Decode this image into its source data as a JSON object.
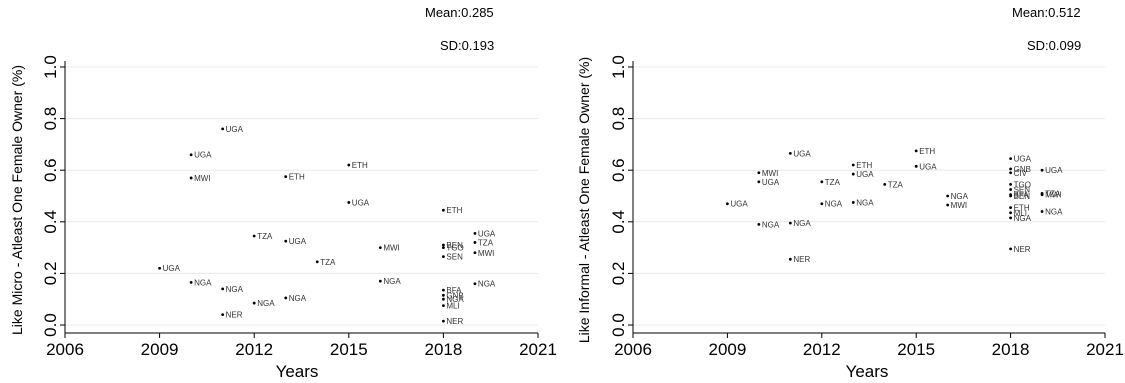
{
  "chart_data": [
    {
      "type": "scatter",
      "xlabel": "Years",
      "ylabel": "Like Micro - Atleast One Female Owner (%)",
      "xlim": [
        2006,
        2021
      ],
      "ylim": [
        0,
        1
      ],
      "xticks": [
        "2006",
        "2009",
        "2012",
        "2015",
        "2018",
        "2021"
      ],
      "yticks": [
        "0.0",
        "0.2",
        "0.4",
        "0.6",
        "0.8",
        "1.0"
      ],
      "grid": true,
      "mean_label": "Mean:0.285",
      "sd_label": "SD:0.193",
      "points": [
        {
          "x": 2009,
          "y": 0.22,
          "label": "UGA"
        },
        {
          "x": 2010,
          "y": 0.66,
          "label": "UGA"
        },
        {
          "x": 2010,
          "y": 0.57,
          "label": "MWI"
        },
        {
          "x": 2010,
          "y": 0.165,
          "label": "NGA"
        },
        {
          "x": 2011,
          "y": 0.76,
          "label": "UGA"
        },
        {
          "x": 2011,
          "y": 0.14,
          "label": "NGA"
        },
        {
          "x": 2011,
          "y": 0.04,
          "label": "NER"
        },
        {
          "x": 2012,
          "y": 0.345,
          "label": "TZA"
        },
        {
          "x": 2012,
          "y": 0.085,
          "label": "NGA"
        },
        {
          "x": 2013,
          "y": 0.575,
          "label": "ETH"
        },
        {
          "x": 2013,
          "y": 0.325,
          "label": "UGA"
        },
        {
          "x": 2013,
          "y": 0.105,
          "label": "NGA"
        },
        {
          "x": 2014,
          "y": 0.245,
          "label": "TZA"
        },
        {
          "x": 2015,
          "y": 0.62,
          "label": "ETH"
        },
        {
          "x": 2015,
          "y": 0.475,
          "label": "UGA"
        },
        {
          "x": 2016,
          "y": 0.3,
          "label": "MWI"
        },
        {
          "x": 2016,
          "y": 0.17,
          "label": "NGA"
        },
        {
          "x": 2018,
          "y": 0.445,
          "label": "ETH"
        },
        {
          "x": 2018,
          "y": 0.31,
          "label": "BEN"
        },
        {
          "x": 2018,
          "y": 0.3,
          "label": "TGO"
        },
        {
          "x": 2018,
          "y": 0.265,
          "label": "SEN"
        },
        {
          "x": 2018,
          "y": 0.135,
          "label": "BFA"
        },
        {
          "x": 2018,
          "y": 0.115,
          "label": "GNB"
        },
        {
          "x": 2018,
          "y": 0.1,
          "label": "NGA"
        },
        {
          "x": 2018,
          "y": 0.075,
          "label": "MLI"
        },
        {
          "x": 2018,
          "y": 0.015,
          "label": "NER"
        },
        {
          "x": 2019,
          "y": 0.355,
          "label": "UGA"
        },
        {
          "x": 2019,
          "y": 0.32,
          "label": "TZA"
        },
        {
          "x": 2019,
          "y": 0.28,
          "label": "MWI"
        },
        {
          "x": 2019,
          "y": 0.16,
          "label": "NGA"
        }
      ]
    },
    {
      "type": "scatter",
      "xlabel": "Years",
      "ylabel": "Like Informal - Atleast One Female Owner (%)",
      "xlim": [
        2006,
        2021
      ],
      "ylim": [
        0,
        1
      ],
      "xticks": [
        "2006",
        "2009",
        "2012",
        "2015",
        "2018",
        "2021"
      ],
      "yticks": [
        "0.0",
        "0.2",
        "0.4",
        "0.6",
        "0.8",
        "1.0"
      ],
      "grid": true,
      "mean_label": "Mean:0.512",
      "sd_label": "SD:0.099",
      "points": [
        {
          "x": 2009,
          "y": 0.47,
          "label": "UGA"
        },
        {
          "x": 2010,
          "y": 0.59,
          "label": "MWI"
        },
        {
          "x": 2010,
          "y": 0.555,
          "label": "UGA"
        },
        {
          "x": 2010,
          "y": 0.39,
          "label": "NGA"
        },
        {
          "x": 2011,
          "y": 0.665,
          "label": "UGA"
        },
        {
          "x": 2011,
          "y": 0.395,
          "label": "NGA"
        },
        {
          "x": 2011,
          "y": 0.255,
          "label": "NER"
        },
        {
          "x": 2012,
          "y": 0.555,
          "label": "TZA"
        },
        {
          "x": 2012,
          "y": 0.47,
          "label": "NGA"
        },
        {
          "x": 2013,
          "y": 0.62,
          "label": "ETH"
        },
        {
          "x": 2013,
          "y": 0.585,
          "label": "UGA"
        },
        {
          "x": 2013,
          "y": 0.475,
          "label": "NGA"
        },
        {
          "x": 2014,
          "y": 0.545,
          "label": "TZA"
        },
        {
          "x": 2015,
          "y": 0.675,
          "label": "ETH"
        },
        {
          "x": 2015,
          "y": 0.615,
          "label": "UGA"
        },
        {
          "x": 2016,
          "y": 0.5,
          "label": "NGA"
        },
        {
          "x": 2016,
          "y": 0.465,
          "label": "MWI"
        },
        {
          "x": 2018,
          "y": 0.645,
          "label": "UGA"
        },
        {
          "x": 2018,
          "y": 0.605,
          "label": "GNB"
        },
        {
          "x": 2018,
          "y": 0.59,
          "label": "CIV"
        },
        {
          "x": 2018,
          "y": 0.545,
          "label": "TGO"
        },
        {
          "x": 2018,
          "y": 0.525,
          "label": "SEN"
        },
        {
          "x": 2018,
          "y": 0.505,
          "label": "BFA"
        },
        {
          "x": 2018,
          "y": 0.5,
          "label": "BEN"
        },
        {
          "x": 2018,
          "y": 0.455,
          "label": "ETH"
        },
        {
          "x": 2018,
          "y": 0.435,
          "label": "MLI"
        },
        {
          "x": 2018,
          "y": 0.415,
          "label": "NGA"
        },
        {
          "x": 2018,
          "y": 0.295,
          "label": "NER"
        },
        {
          "x": 2019,
          "y": 0.6,
          "label": "UGA"
        },
        {
          "x": 2019,
          "y": 0.51,
          "label": "TZA"
        },
        {
          "x": 2019,
          "y": 0.505,
          "label": "MWI"
        },
        {
          "x": 2019,
          "y": 0.44,
          "label": "NGA"
        }
      ]
    }
  ]
}
